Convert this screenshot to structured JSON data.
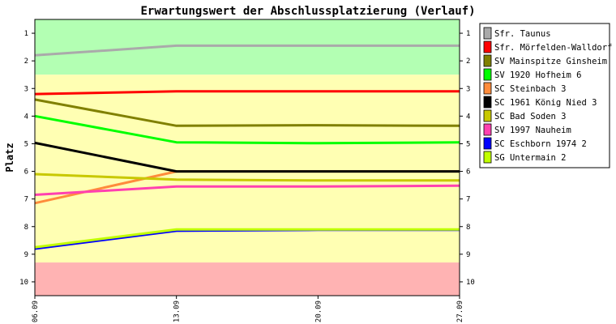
{
  "chart_data": {
    "type": "line",
    "title": "Erwartungswert der Abschlussplatzierung (Verlauf)",
    "xlabel": "",
    "ylabel": "Platz",
    "x": [
      "06.09",
      "13.09",
      "20.09",
      "27.09"
    ],
    "ylim": [
      0.5,
      10.5
    ],
    "y_inverted": true,
    "yticks": [
      1,
      2,
      3,
      4,
      5,
      6,
      7,
      8,
      9,
      10
    ],
    "bands": [
      {
        "from": 0.5,
        "to": 2.5,
        "color": "#b3ffb3"
      },
      {
        "from": 2.5,
        "to": 9.3,
        "color": "#ffffb3"
      },
      {
        "from": 9.3,
        "to": 10.5,
        "color": "#ffb3b3"
      }
    ],
    "legend_position": "right",
    "series": [
      {
        "name": "Sfr. Taunus",
        "color": "#aaaaaa",
        "values": [
          1.8,
          1.45,
          1.45,
          1.45
        ]
      },
      {
        "name": "Sfr. Mörfelden-Walldorf",
        "color": "#ff0000",
        "values": [
          3.2,
          3.1,
          3.1,
          3.1
        ]
      },
      {
        "name": "SV Mainspitze Ginsheim",
        "color": "#808000",
        "values": [
          3.4,
          4.35,
          4.33,
          4.35
        ]
      },
      {
        "name": "SV 1920 Hofheim 6",
        "color": "#00ff00",
        "values": [
          4.0,
          4.95,
          4.98,
          4.95
        ]
      },
      {
        "name": "SC Steinbach 3",
        "color": "#ff8c3c",
        "values": [
          7.15,
          6.0,
          6.0,
          6.0
        ]
      },
      {
        "name": "SC 1961 König Nied 3",
        "color": "#000000",
        "values": [
          4.97,
          6.0,
          6.0,
          6.0
        ]
      },
      {
        "name": "SC Bad Soden 3",
        "color": "#c8c800",
        "values": [
          6.1,
          6.3,
          6.33,
          6.33
        ]
      },
      {
        "name": "SV 1997 Nauheim",
        "color": "#ff40b0",
        "values": [
          6.85,
          6.55,
          6.55,
          6.52
        ]
      },
      {
        "name": "SC Eschborn 1974 2",
        "color": "#0000ff",
        "values": [
          8.8,
          8.15,
          8.12,
          8.12
        ]
      },
      {
        "name": "SG Untermain 2",
        "color": "#c0ff00",
        "values": [
          8.75,
          8.1,
          8.1,
          8.1
        ]
      }
    ]
  }
}
